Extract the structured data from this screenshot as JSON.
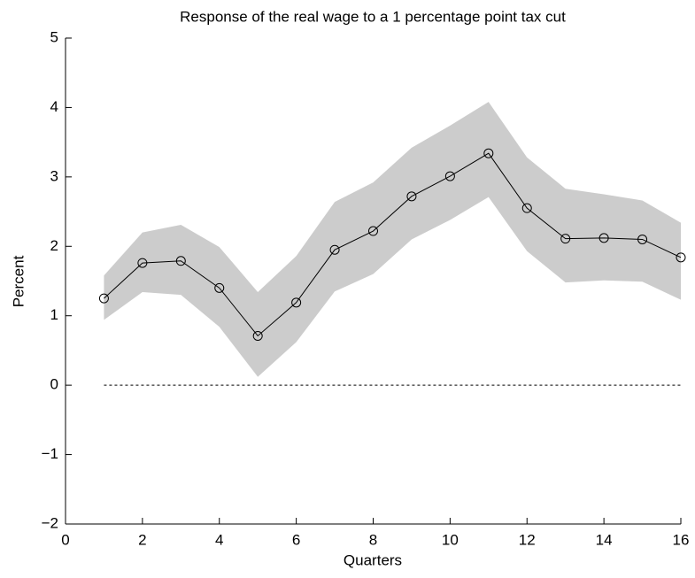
{
  "chart_data": {
    "type": "line",
    "title": "Response of the real wage to a 1 percentage point tax cut",
    "x_label": "Quarters",
    "y_label": "Percent",
    "x": [
      1,
      2,
      3,
      4,
      5,
      6,
      7,
      8,
      9,
      10,
      11,
      12,
      13,
      14,
      15,
      16
    ],
    "series": [
      {
        "color": "#000000",
        "values": [
          1.25,
          1.76,
          1.79,
          1.4,
          0.71,
          1.19,
          1.95,
          2.22,
          2.72,
          3.01,
          3.34,
          2.55,
          2.11,
          2.12,
          2.1,
          1.84
        ],
        "upper": [
          1.58,
          2.2,
          2.31,
          1.99,
          1.34,
          1.86,
          2.64,
          2.92,
          3.42,
          3.74,
          4.08,
          3.28,
          2.83,
          2.75,
          2.66,
          2.34
        ],
        "lower": [
          0.94,
          1.34,
          1.3,
          0.84,
          0.12,
          0.62,
          1.35,
          1.6,
          2.1,
          2.38,
          2.71,
          1.93,
          1.48,
          1.51,
          1.49,
          1.23
        ]
      }
    ],
    "band_color": "#cccccc",
    "reference_line": 0,
    "xlim": [
      0,
      16
    ],
    "xticks": [
      0,
      2,
      4,
      6,
      8,
      10,
      12,
      14,
      16
    ],
    "ylim": [
      -2,
      5
    ],
    "yticks": [
      {
        "value": -2,
        "label": "−2"
      },
      {
        "value": -1,
        "label": "−1"
      },
      0,
      1,
      2,
      3,
      4,
      5
    ],
    "grid": false
  }
}
